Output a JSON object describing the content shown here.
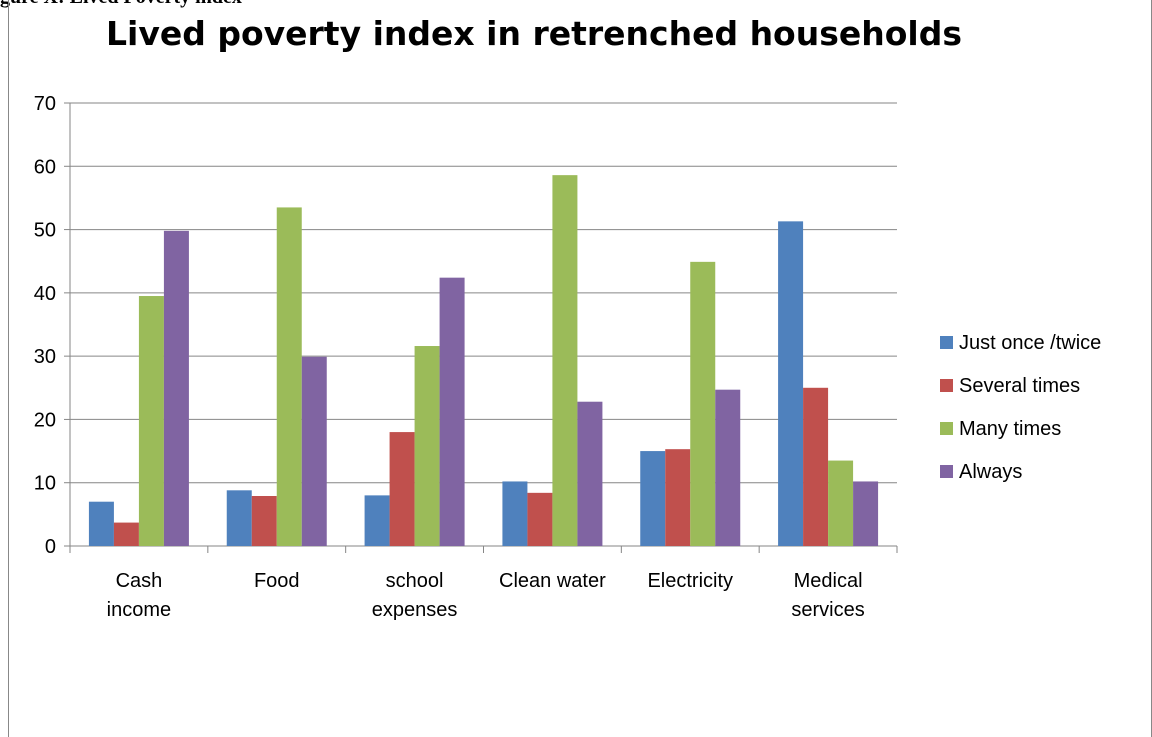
{
  "header_fragment": "gure X: Lived Poverty index",
  "chart_data": {
    "type": "bar",
    "title": "Lived poverty index in retrenched households",
    "xlabel": "",
    "ylabel": "",
    "ylim": [
      0,
      70
    ],
    "yticks": [
      0,
      10,
      20,
      30,
      40,
      50,
      60,
      70
    ],
    "grid": true,
    "legend_position": "right",
    "categories": [
      [
        "Cash",
        "income"
      ],
      [
        "Food"
      ],
      [
        "school",
        "expenses"
      ],
      [
        "Clean water"
      ],
      [
        "Electricity"
      ],
      [
        "Medical",
        "services"
      ]
    ],
    "series": [
      {
        "name": "Just once /twice",
        "color": "#4f81bd",
        "values": [
          7,
          8.8,
          8,
          10.2,
          15,
          51.3
        ]
      },
      {
        "name": "Several times",
        "color": "#c0504d",
        "values": [
          3.7,
          7.9,
          18,
          8.4,
          15.3,
          25
        ]
      },
      {
        "name": "Many times",
        "color": "#9bbb59",
        "values": [
          39.5,
          53.5,
          31.6,
          58.6,
          44.9,
          13.5
        ]
      },
      {
        "name": "Always",
        "color": "#8064a2",
        "values": [
          49.8,
          29.9,
          42.4,
          22.8,
          24.7,
          10.2
        ]
      }
    ]
  }
}
